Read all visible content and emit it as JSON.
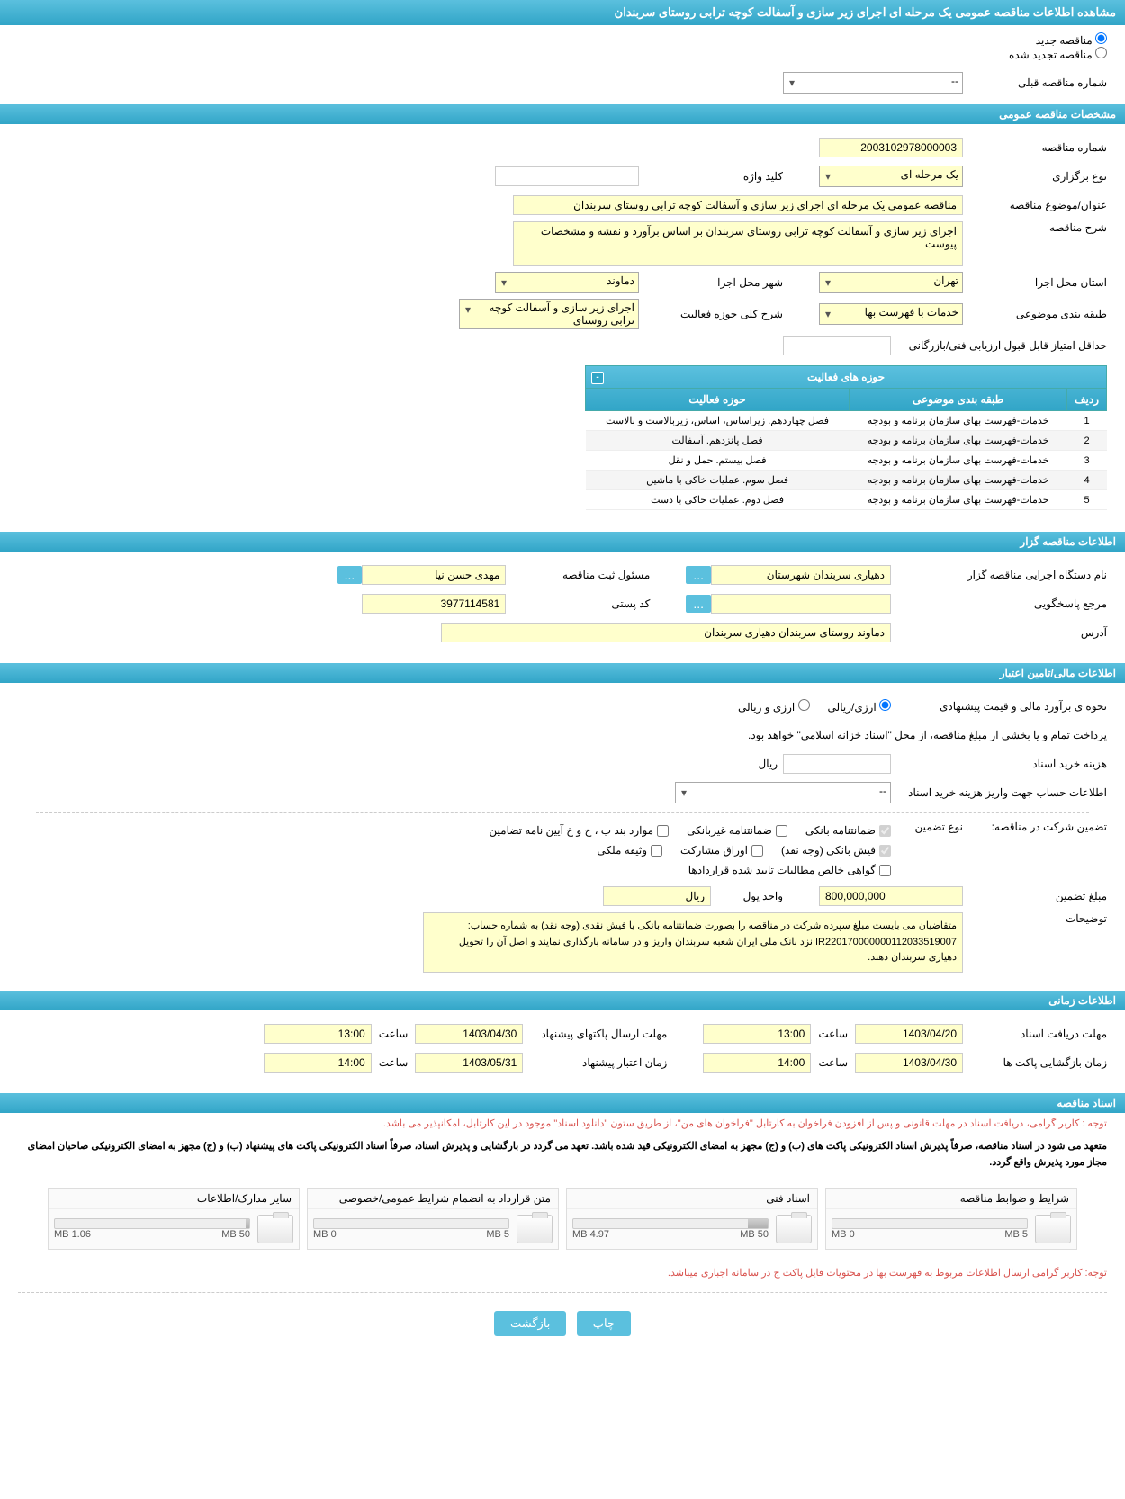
{
  "page_title": "مشاهده اطلاعات مناقصه عمومی یک مرحله ای اجرای زیر سازی و آسفالت کوچه ترابی روستای سربندان",
  "radio": {
    "new": "مناقصه جدید",
    "renewed": "مناقصه تجدید شده"
  },
  "prev_number_label": "شماره مناقصه قبلی",
  "prev_number_value": "--",
  "sections": {
    "general": "مشخصات مناقصه عمومی",
    "organizer": "اطلاعات مناقصه گزار",
    "financial": "اطلاعات مالی/تامین اعتبار",
    "timing": "اطلاعات زمانی",
    "docs": "اسناد مناقصه"
  },
  "general": {
    "number_label": "شماره مناقصه",
    "number": "2003102978000003",
    "keyword_label": "کلید واژه",
    "type_label": "نوع برگزاری",
    "type": "یک مرحله ای",
    "title_label": "عنوان/موضوع مناقصه",
    "title": "مناقصه عمومی یک مرحله ای اجرای زیر سازی و آسفالت کوچه ترابی روستای سربندان",
    "desc_label": "شرح مناقصه",
    "desc": "اجرای زیر سازی و آسفالت کوچه ترابی روستای سربندان بر اساس برآورد و نقشه و مشخصات پیوست",
    "province_label": "استان محل اجرا",
    "province": "تهران",
    "city_label": "شهر محل اجرا",
    "city": "دماوند",
    "category_label": "طبقه بندی موضوعی",
    "category": "خدمات با فهرست بها",
    "activity_desc_label": "شرح کلی حوزه فعالیت",
    "activity_desc": "اجرای زیر سازی و آسفالت کوچه ترابی روستای",
    "min_score_label": "حداقل امتیاز قابل قبول ارزیابی فنی/بازرگانی"
  },
  "activity_table": {
    "title": "حوزه های فعالیت",
    "cols": {
      "row": "ردیف",
      "category": "طبقه بندی موضوعی",
      "area": "حوزه فعالیت"
    },
    "rows": [
      {
        "n": "1",
        "cat": "خدمات-فهرست بهای سازمان برنامه و بودجه",
        "area": "فصل چهاردهم. زیراساس، اساس، زیربالاست و بالاست"
      },
      {
        "n": "2",
        "cat": "خدمات-فهرست بهای سازمان برنامه و بودجه",
        "area": "فصل پانزدهم. آسفالت"
      },
      {
        "n": "3",
        "cat": "خدمات-فهرست بهای سازمان برنامه و بودجه",
        "area": "فصل بیستم. حمل و نقل"
      },
      {
        "n": "4",
        "cat": "خدمات-فهرست بهای سازمان برنامه و بودجه",
        "area": "فصل سوم. عملیات خاکی با ماشین"
      },
      {
        "n": "5",
        "cat": "خدمات-فهرست بهای سازمان برنامه و بودجه",
        "area": "فصل دوم. عملیات خاکی با دست"
      }
    ]
  },
  "organizer": {
    "agency_label": "نام دستگاه اجرایی مناقصه گزار",
    "agency": "دهیاری سربندان شهرستان",
    "registrar_label": "مسئول ثبت مناقصه",
    "registrar": "مهدی حسن نیا",
    "responder_label": "مرجع پاسخگویی",
    "postal_label": "کد پستی",
    "postal": "3977114581",
    "address_label": "آدرس",
    "address": "دماوند روستای سربندان دهیاری سربندان"
  },
  "financial": {
    "estimate_label": "نحوه ی برآورد مالی و قیمت پیشنهادی",
    "opt_rial": "ارزی/ریالی",
    "opt_arz": "ارزی و ریالی",
    "payment_note": "پرداخت تمام و یا بخشی از مبلغ مناقصه، از محل \"اسناد خزانه اسلامی\" خواهد بود.",
    "doc_cost_label": "هزینه خرید اسناد",
    "rial": "ریال",
    "account_label": "اطلاعات حساب جهت واریز هزینه خرید اسناد",
    "account_value": "--",
    "guarantee_label": "تضمین شرکت در مناقصه:",
    "guarantee_type_label": "نوع تضمین",
    "chk": {
      "bank_guarantee": "ضمانتنامه بانکی",
      "nonbank_guarantee": "ضمانتنامه غیربانکی",
      "regulation": "موارد بند ب ، ج و خ آیین نامه تضامین",
      "cash": "فیش بانکی (وجه نقد)",
      "securities": "اوراق مشارکت",
      "property": "وثیقه ملکی",
      "contract_claims": "گواهی خالص مطالبات تایید شده قراردادها"
    },
    "amount_label": "مبلغ تضمین",
    "amount": "800,000,000",
    "unit_label": "واحد پول",
    "unit": "ریال",
    "notes_label": "توضیحات",
    "notes": "متقاضیان می بایست مبلغ سپرده شرکت در مناقصه را بصورت ضمانتنامه بانکی یا فیش نقدی (وجه نقد) به شماره حساب: IR220170000000112033519007 نزد بانک ملی ایران شعبه سربندان واریز و در سامانه بارگذاری نمایند و اصل آن را تحویل دهیاری سربندان دهند."
  },
  "timing": {
    "receive_label": "مهلت دریافت اسناد",
    "receive_date": "1403/04/20",
    "hour": "ساعت",
    "receive_time": "13:00",
    "send_label": "مهلت ارسال پاکتهای پیشنهاد",
    "send_date": "1403/04/30",
    "send_time": "13:00",
    "open_label": "زمان بازگشایی پاکت ها",
    "open_date": "1403/04/30",
    "open_time": "14:00",
    "validity_label": "زمان اعتبار پیشنهاد",
    "validity_date": "1403/05/31",
    "validity_time": "14:00"
  },
  "docs_notes": {
    "red1": "توجه : کاربر گرامی، دریافت اسناد در مهلت قانونی و پس از افزودن فراخوان به کارتابل \"فراخوان های من\"، از طریق ستون \"دانلود اسناد\" موجود در این کارتابل، امکانپذیر می باشد.",
    "black": "متعهد می شود در اسناد مناقصه، صرفاً پذیرش اسناد الکترونیکی پاکت های (ب) و (ج) مجهز به امضای الکترونیکی قید شده باشد. تعهد می گردد در بارگشایی و پذیرش اسناد، صرفاً اسناد الکترونیکی پاکت های پیشنهاد (ب) و (ج) مجهز به امضای الکترونیکی صاحبان امضای مجاز مورد پذیرش واقع گردد.",
    "red2": "توجه: کاربر گرامی ارسال اطلاعات مربوط به فهرست بها در محتویات فایل پاکت ج در سامانه اجباری میباشد."
  },
  "files": [
    {
      "title": "شرایط و ضوابط مناقصه",
      "used": "0 MB",
      "cap": "5 MB",
      "pct": 0
    },
    {
      "title": "اسناد فنی",
      "used": "4.97 MB",
      "cap": "50 MB",
      "pct": 10
    },
    {
      "title": "متن قرارداد به انضمام شرایط عمومی/خصوصی",
      "used": "0 MB",
      "cap": "5 MB",
      "pct": 0
    },
    {
      "title": "سایر مدارک/اطلاعات",
      "used": "1.06 MB",
      "cap": "50 MB",
      "pct": 2
    }
  ],
  "buttons": {
    "print": "چاپ",
    "back": "بازگشت",
    "more": "..."
  }
}
